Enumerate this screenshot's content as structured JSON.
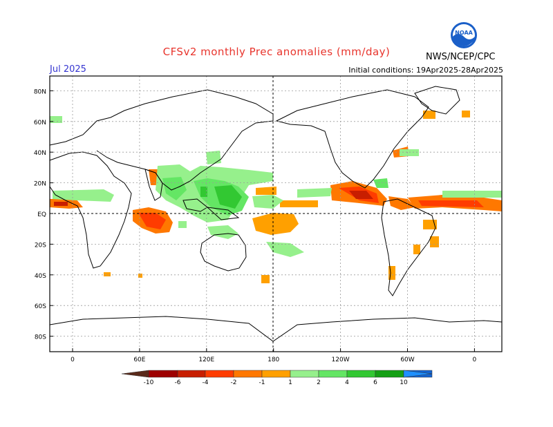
{
  "header": {
    "title": "CFSv2 monthly Prec anomalies (mm/day)",
    "month": "Jul 2025",
    "initial_conditions": "Initial conditions: 19Apr2025-28Apr2025",
    "agency": "NWS/NCEP/CPC",
    "logo_text": "NOAA"
  },
  "map": {
    "lat_labels": [
      "80N",
      "60N",
      "40N",
      "20N",
      "EQ",
      "20S",
      "40S",
      "60S",
      "80S"
    ],
    "lon_labels": [
      "0",
      "60E",
      "120E",
      "180",
      "120W",
      "60W",
      "0"
    ],
    "grid": true,
    "dashed_meridian": "180"
  },
  "colorbar": {
    "labels": [
      "-10",
      "-6",
      "-4",
      "-2",
      "-1",
      "1",
      "2",
      "4",
      "6",
      "10"
    ],
    "dry_colors": [
      "#5a2a1a",
      "#9e0000",
      "#c81e00",
      "#ff3c00",
      "#ff7800",
      "#ffa000"
    ],
    "wet_colors": [
      "#96f08c",
      "#64e664",
      "#32c832",
      "#14a014",
      "#1464d2",
      "#1e90ff"
    ]
  }
}
